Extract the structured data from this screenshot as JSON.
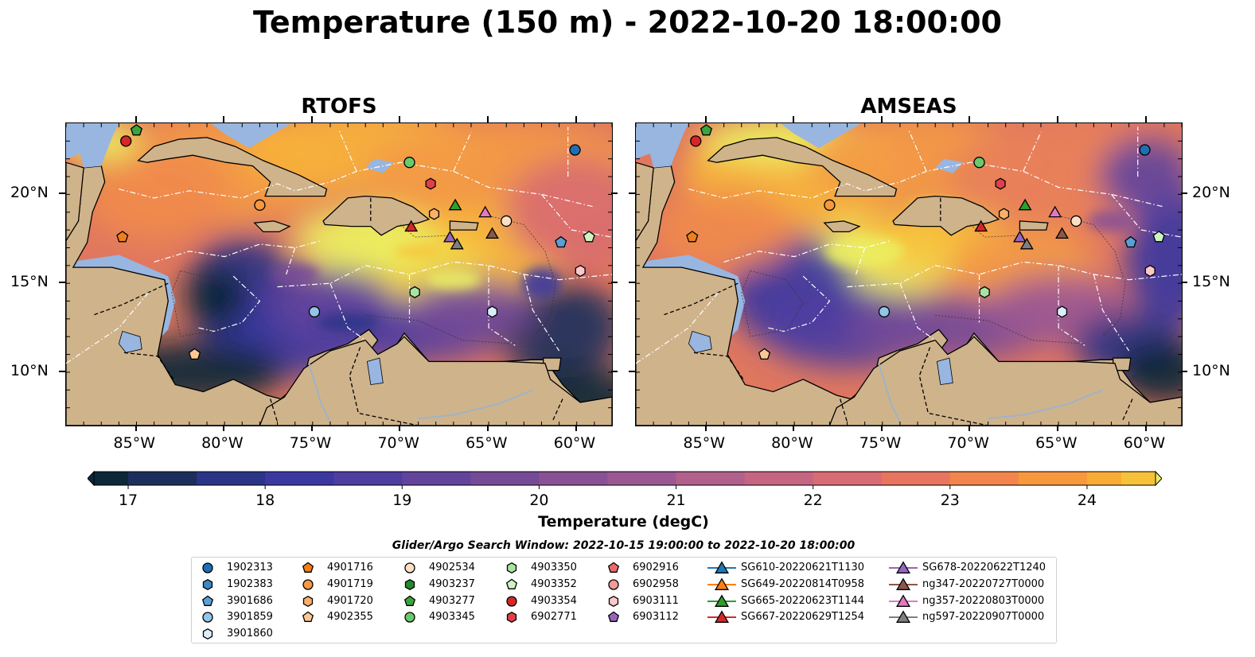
{
  "title": "Temperature (150 m) - 2022-10-20 18:00:00",
  "panels": [
    {
      "title": "RTOFS"
    },
    {
      "title": "AMSEAS"
    }
  ],
  "lon_ticks": [
    "85°W",
    "80°W",
    "75°W",
    "70°W",
    "65°W",
    "60°W"
  ],
  "lat_ticks": [
    "20°N",
    "15°N",
    "10°N"
  ],
  "colorbar": {
    "label": "Temperature (degC)",
    "ticks": [
      "17",
      "18",
      "19",
      "20",
      "21",
      "22",
      "23",
      "24"
    ],
    "colors": [
      "#0c2737",
      "#1c2f5c",
      "#2b3486",
      "#3b38a0",
      "#4f3d9f",
      "#62449c",
      "#754b98",
      "#895195",
      "#9c5892",
      "#b0608b",
      "#c66582",
      "#d86b73",
      "#e87560",
      "#f2854c",
      "#f7983c",
      "#f9ac35",
      "#f7c13a",
      "#f3d947",
      "#ecf062"
    ]
  },
  "legend": {
    "title": "Glider/Argo Search Window: 2022-10-15 19:00:00 to 2022-10-20 18:00:00",
    "items": [
      {
        "label": "1902313",
        "marker": "circle",
        "color": "#1f6fb4"
      },
      {
        "label": "1902383",
        "marker": "hexagon",
        "color": "#3f87c4"
      },
      {
        "label": "3901686",
        "marker": "pentagon",
        "color": "#5aa0d6"
      },
      {
        "label": "3901859",
        "marker": "circle",
        "color": "#93c5e8"
      },
      {
        "label": "3901860",
        "marker": "hexagon",
        "color": "#dbeefb"
      },
      {
        "label": "4901716",
        "marker": "pentagon",
        "color": "#f07e1b"
      },
      {
        "label": "4901719",
        "marker": "circle",
        "color": "#f6983f"
      },
      {
        "label": "4901720",
        "marker": "hexagon",
        "color": "#f9b069"
      },
      {
        "label": "4902355",
        "marker": "pentagon",
        "color": "#fbc894"
      },
      {
        "label": "4902534",
        "marker": "circle",
        "color": "#fde0c4"
      },
      {
        "label": "4903350",
        "marker": "hexagon",
        "color": "#a9e3a1"
      },
      {
        "label": "4903237",
        "marker": "hexagon",
        "color": "#238b2d"
      },
      {
        "label": "4903277",
        "marker": "pentagon",
        "color": "#3aa43d"
      },
      {
        "label": "4903345",
        "marker": "circle",
        "color": "#6ac96a"
      },
      {
        "label": "4903352",
        "marker": "pentagon",
        "color": "#ccf4c2"
      },
      {
        "label": "4903354",
        "marker": "circle",
        "color": "#d62728"
      },
      {
        "label": "6902771",
        "marker": "hexagon",
        "color": "#e0404a"
      },
      {
        "label": "6902916",
        "marker": "pentagon",
        "color": "#e96a6a"
      },
      {
        "label": "6902958",
        "marker": "circle",
        "color": "#f39a9a"
      },
      {
        "label": "6903111",
        "marker": "hexagon",
        "color": "#fbc8c8"
      },
      {
        "label": "6903112",
        "marker": "pentagon",
        "color": "#9467bd"
      },
      {
        "label": "SG610-20220621T1130",
        "marker": "triangle-line",
        "color": "#1f77b4"
      },
      {
        "label": "SG649-20220814T0958",
        "marker": "triangle-line",
        "color": "#ff7f0e"
      },
      {
        "label": "SG665-20220623T1144",
        "marker": "triangle-line",
        "color": "#2ca02c"
      },
      {
        "label": "SG667-20220629T1254",
        "marker": "triangle-line",
        "color": "#d62728"
      },
      {
        "label": "SG678-20220622T1240",
        "marker": "triangle-line",
        "color": "#9467bd"
      },
      {
        "label": "ng347-20220727T0000",
        "marker": "triangle-line",
        "color": "#8c564b"
      },
      {
        "label": "ng357-20220803T0000",
        "marker": "triangle-line",
        "color": "#e377c2"
      },
      {
        "label": "ng597-20220907T0000",
        "marker": "triangle-line",
        "color": "#7f7f7f"
      }
    ]
  },
  "markers": [
    {
      "id": "4903277",
      "lon": -85.0,
      "lat": 23.6
    },
    {
      "id": "4903354",
      "lon": -85.6,
      "lat": 23.0
    },
    {
      "id": "1902313",
      "lon": -60.1,
      "lat": 22.5
    },
    {
      "id": "4903345",
      "lon": -69.5,
      "lat": 21.8
    },
    {
      "id": "6902771",
      "lon": -68.3,
      "lat": 20.6
    },
    {
      "id": "4901719",
      "lon": -78.0,
      "lat": 19.4
    },
    {
      "id": "SG665-20220623T1144",
      "lon": -66.9,
      "lat": 19.4
    },
    {
      "id": "4902534",
      "lon": -64.0,
      "lat": 18.5
    },
    {
      "id": "4901720",
      "lon": -68.1,
      "lat": 18.9
    },
    {
      "id": "ng357-20220803T0000",
      "lon": -65.2,
      "lat": 19.0
    },
    {
      "id": "SG667-20220629T1254",
      "lon": -69.4,
      "lat": 18.2
    },
    {
      "id": "ng347-20220727T0000",
      "lon": -64.8,
      "lat": 17.8
    },
    {
      "id": "SG678-20220622T1240",
      "lon": -67.2,
      "lat": 17.6
    },
    {
      "id": "ng597-20220907T0000",
      "lon": -66.8,
      "lat": 17.2
    },
    {
      "id": "4901716",
      "lon": -85.8,
      "lat": 17.6
    },
    {
      "id": "4903352",
      "lon": -59.3,
      "lat": 17.6
    },
    {
      "id": "3901686",
      "lon": -60.9,
      "lat": 17.3
    },
    {
      "id": "6903111",
      "lon": -59.8,
      "lat": 15.7
    },
    {
      "id": "4903350",
      "lon": -69.2,
      "lat": 14.5
    },
    {
      "id": "3901859",
      "lon": -74.9,
      "lat": 13.4
    },
    {
      "id": "3901860",
      "lon": -64.8,
      "lat": 13.4
    },
    {
      "id": "4902355",
      "lon": -81.7,
      "lat": 11.0
    }
  ]
}
